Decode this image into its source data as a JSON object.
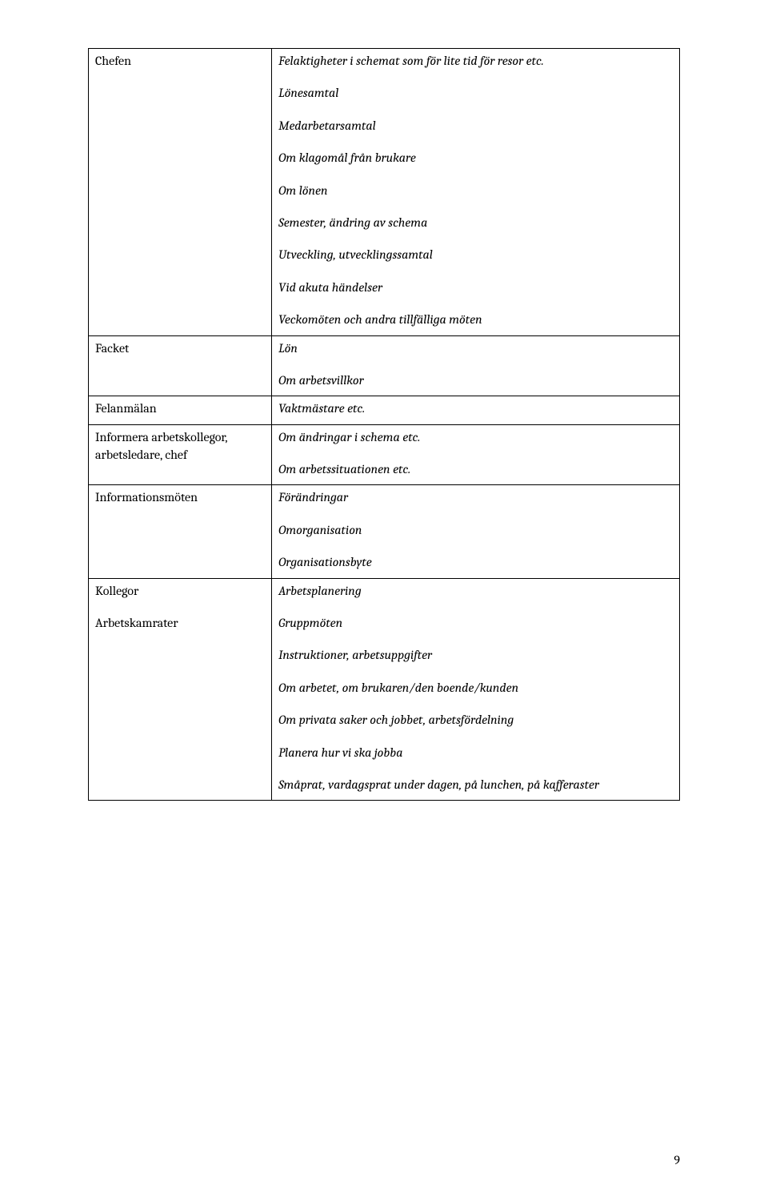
{
  "rows": [
    {
      "left": [
        "Chefen"
      ],
      "right": [
        "Felaktigheter i schemat som för lite tid för resor etc.",
        "Lönesamtal",
        "Medarbetarsamtal",
        "Om klagomål från brukare",
        "Om lönen",
        "Semester, ändring av schema",
        "Utveckling, utvecklingssamtal",
        "Vid akuta händelser",
        "Veckomöten och andra tillfälliga möten"
      ]
    },
    {
      "left": [
        "Facket"
      ],
      "right": [
        "Lön",
        "Om arbetsvillkor"
      ]
    },
    {
      "left": [
        "Felanmälan"
      ],
      "right": [
        "Vaktmästare etc."
      ]
    },
    {
      "left": [
        "Informera arbetskollegor, arbetsledare, chef"
      ],
      "right": [
        "Om ändringar i schema etc.",
        "Om arbetssituationen etc."
      ]
    },
    {
      "left": [
        "Informationsmöten"
      ],
      "right": [
        "Förändringar",
        "Omorganisation",
        "Organisationsbyte"
      ]
    },
    {
      "left": [
        "Kollegor",
        "Arbetskamrater"
      ],
      "right": [
        "Arbetsplanering",
        "Gruppmöten",
        "Instruktioner, arbetsuppgifter",
        "Om arbetet, om brukaren/den boende/kunden",
        "Om privata saker och jobbet, arbetsfördelning",
        "Planera hur vi ska jobba",
        "Småprat, vardagsprat under dagen, på lunchen, på kafferaster"
      ]
    }
  ],
  "page_number": "9"
}
